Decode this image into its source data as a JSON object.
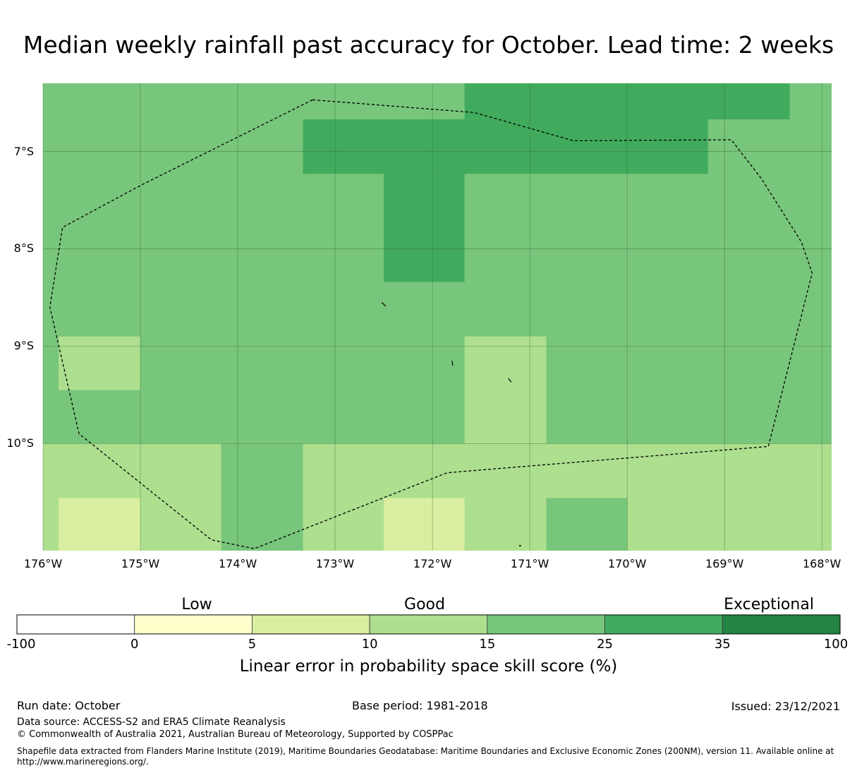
{
  "title": "Median weekly rainfall past accuracy for October. Lead time: 2 weeks",
  "map": {
    "lon_range": [
      -176.0,
      -167.9
    ],
    "lat_range": [
      -11.1,
      -6.3
    ],
    "lon_labels": [
      "176°W",
      "175°W",
      "174°W",
      "173°W",
      "172°W",
      "171°W",
      "170°W",
      "169°W",
      "168°W"
    ],
    "lat_labels": [
      "7°S",
      "8°S",
      "9°S",
      "10°S"
    ],
    "colors": {
      "c5_10": "#d9eea0",
      "c10_15": "#addf8e",
      "c15_25": "#78c67b",
      "c25_35": "#41ab5d",
      "boundary": "#000000"
    },
    "cells": [
      {
        "lon": [
          -176.0,
          -167.9
        ],
        "lat": [
          -11.1,
          -6.3
        ],
        "c": "c15_25"
      },
      {
        "lon": [
          -176.0,
          -167.9
        ],
        "lat": [
          -11.1,
          -10.0
        ],
        "c": "c10_15"
      },
      {
        "lon": [
          -174.17,
          -173.33
        ],
        "lat": [
          -11.1,
          -10.0
        ],
        "c": "c15_25"
      },
      {
        "lon": [
          -170.83,
          -170.0
        ],
        "lat": [
          -11.1,
          -10.56
        ],
        "c": "c15_25"
      },
      {
        "lon": [
          -175.84,
          -175.0
        ],
        "lat": [
          -11.1,
          -10.56
        ],
        "c": "c5_10"
      },
      {
        "lon": [
          -172.5,
          -171.67
        ],
        "lat": [
          -11.1,
          -10.56
        ],
        "c": "c5_10"
      },
      {
        "lon": [
          -175.84,
          -175.0
        ],
        "lat": [
          -9.45,
          -8.9
        ],
        "c": "c10_15"
      },
      {
        "lon": [
          -171.67,
          -170.83
        ],
        "lat": [
          -10.0,
          -8.9
        ],
        "c": "c10_15"
      },
      {
        "lon": [
          -171.67,
          -168.33
        ],
        "lat": [
          -6.67,
          -6.3
        ],
        "c": "c25_35"
      },
      {
        "lon": [
          -173.33,
          -169.17
        ],
        "lat": [
          -7.23,
          -6.67
        ],
        "c": "c25_35"
      },
      {
        "lon": [
          -172.5,
          -171.67
        ],
        "lat": [
          -8.34,
          -7.23
        ],
        "c": "c25_35"
      }
    ],
    "eez_boundary": [
      [
        -173.23,
        -6.47
      ],
      [
        -171.57,
        -6.6
      ],
      [
        -170.55,
        -6.89
      ],
      [
        -168.93,
        -6.88
      ],
      [
        -168.62,
        -7.28
      ],
      [
        -168.21,
        -7.93
      ],
      [
        -168.1,
        -8.25
      ],
      [
        -168.55,
        -10.03
      ],
      [
        -171.85,
        -10.3
      ],
      [
        -173.83,
        -11.08
      ],
      [
        -174.27,
        -10.99
      ],
      [
        -175.63,
        -9.9
      ],
      [
        -175.93,
        -8.6
      ],
      [
        -175.8,
        -7.78
      ],
      [
        -175.0,
        -7.35
      ],
      [
        -173.23,
        -6.47
      ]
    ],
    "islands": [
      [
        [
          -172.52,
          -8.55
        ],
        [
          -172.48,
          -8.59
        ]
      ],
      [
        [
          -171.8,
          -9.15
        ],
        [
          -171.79,
          -9.2
        ]
      ],
      [
        [
          -171.22,
          -9.33
        ],
        [
          -171.19,
          -9.37
        ]
      ]
    ]
  },
  "colorbar": {
    "categories": [
      "Low",
      "Good",
      "Exceptional"
    ],
    "bins": [
      {
        "from": "-100",
        "to": "0",
        "color": "#ffffff"
      },
      {
        "from": "0",
        "to": "5",
        "color": "#ffffcc"
      },
      {
        "from": "5",
        "to": "10",
        "color": "#d9eea0"
      },
      {
        "from": "10",
        "to": "15",
        "color": "#addf8e"
      },
      {
        "from": "15",
        "to": "25",
        "color": "#78c67b"
      },
      {
        "from": "25",
        "to": "35",
        "color": "#41ab5d"
      },
      {
        "from": "35",
        "to": "100",
        "color": "#238443"
      }
    ],
    "tick_labels": [
      "-100",
      "0",
      "5",
      "10",
      "15",
      "25",
      "35",
      "100"
    ],
    "title": "Linear error in probability space skill score (%)"
  },
  "footer": {
    "run_date": "Run date: October",
    "base_period": "Base period: 1981-2018",
    "issued": "Issued: 23/12/2021",
    "data_source": "Data source: ACCESS-S2 and ERA5 Climate Reanalysis",
    "copyright": "© Commonwealth of Australia 2021, Australian Bureau of Meteorology, Supported by COSPPac",
    "shapefile": "Shapefile data extracted from Flanders Marine Institute (2019), Maritime Boundaries Geodatabase: Maritime Boundaries and Exclusive Economic Zones (200NM), version 11. Available online at http://www.marineregions.org/."
  }
}
